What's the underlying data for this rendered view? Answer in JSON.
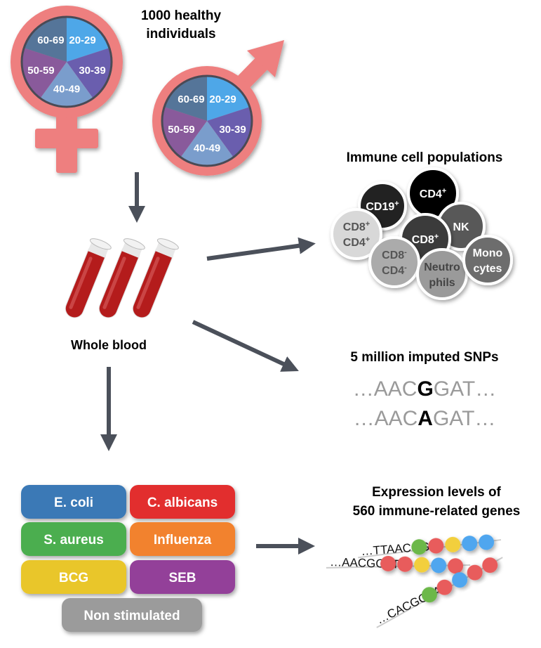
{
  "title": "1000 healthy individuals",
  "title_lines": [
    "1000 healthy",
    "individuals"
  ],
  "age_groups": [
    "20-29",
    "30-39",
    "40-49",
    "50-59",
    "60-69"
  ],
  "age_colors": [
    "#4ea7e8",
    "#6a5eae",
    "#7a9dcc",
    "#895a9b",
    "#557599"
  ],
  "symbol_color": "#ee7f7f",
  "arrow_color": "#4b505a",
  "sample_label": "Whole blood",
  "cells": {
    "title": "Immune cell populations",
    "items": [
      {
        "label": [
          "CD19",
          "+"
        ],
        "color": "#232323",
        "text": "#ffffff"
      },
      {
        "label": [
          "CD4",
          "+"
        ],
        "color": "#000000",
        "text": "#ffffff"
      },
      {
        "label": [
          "NK"
        ],
        "color": "#585858",
        "text": "#ffffff"
      },
      {
        "label": [
          "CD8",
          "+"
        ],
        "color": "#3b3b3b",
        "text": "#ffffff"
      },
      {
        "label": [
          "CD8",
          "+",
          "CD4",
          "+"
        ],
        "color": "#d8d8d8",
        "text": "#555555"
      },
      {
        "label": [
          "CD8",
          "-",
          "CD4",
          "-"
        ],
        "color": "#ababab",
        "text": "#555555"
      },
      {
        "label": [
          "Neutro",
          "phils"
        ],
        "color": "#9a9a9a",
        "text": "#444444"
      },
      {
        "label": [
          "Mono",
          "cytes"
        ],
        "color": "#6d6d6d",
        "text": "#ffffff"
      }
    ]
  },
  "snps": {
    "title": "5 million imputed SNPs",
    "sequences": [
      {
        "prefix": "…AAC",
        "allele": "G",
        "suffix": "GAT…"
      },
      {
        "prefix": "…AAC",
        "allele": "A",
        "suffix": "GAT…"
      }
    ]
  },
  "stimuli": [
    {
      "label": "E. coli",
      "color": "#3a79b6"
    },
    {
      "label": "C. albicans",
      "color": "#e22f2f"
    },
    {
      "label": "S. aureus",
      "color": "#4bae4f"
    },
    {
      "label": "Influenza",
      "color": "#f2822e"
    },
    {
      "label": "BCG",
      "color": "#e9c62c"
    },
    {
      "label": "SEB",
      "color": "#934199"
    },
    {
      "label": "Non stimulated",
      "color": "#9b9b9b"
    }
  ],
  "expression": {
    "title_lines": [
      "Expression levels of",
      "560 immune-related genes"
    ],
    "sequences": [
      {
        "text": "…TTAACGG",
        "beads": [
          "#6cb84a",
          "#e85c5c",
          "#f2cf3c",
          "#4fa6ef",
          "#4fa6ef"
        ]
      },
      {
        "text": "…AACGGAT",
        "beads": [
          "#e85c5c",
          "#e85c5c",
          "#f2cf3c",
          "#4fa6ef",
          "#e85c5c"
        ]
      },
      {
        "text": "…CACGCAA",
        "beads": [
          "#6cb84a",
          "#e85c5c",
          "#4fa6ef",
          "#e85c5c",
          "#e85c5c"
        ]
      }
    ]
  }
}
